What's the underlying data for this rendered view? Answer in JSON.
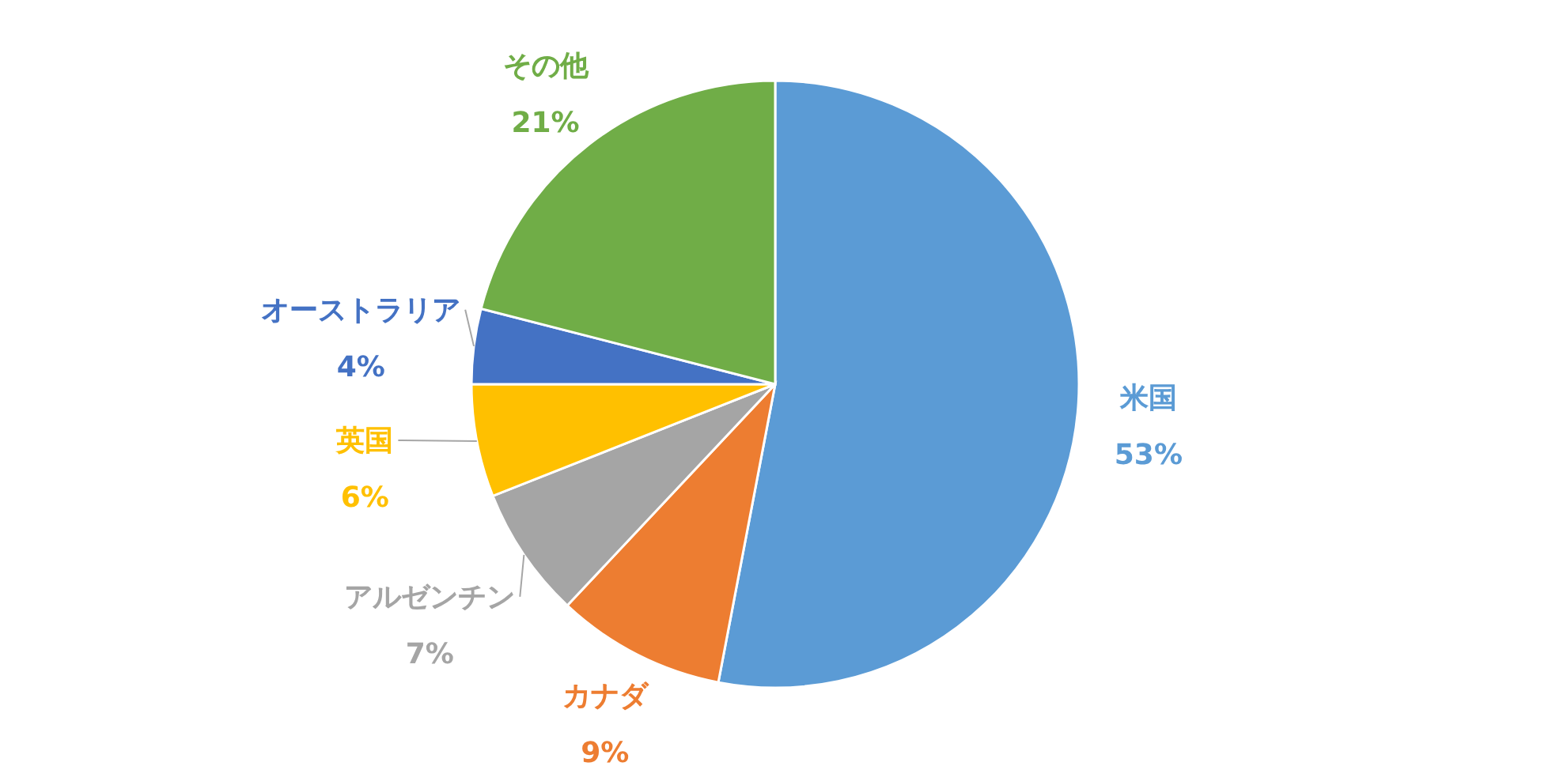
{
  "chart_data": {
    "type": "pie",
    "categories": [
      "米国",
      "カナダ",
      "アルゼンチン",
      "英国",
      "オーストラリア",
      "その他"
    ],
    "values": [
      53,
      9,
      7,
      6,
      4,
      21
    ],
    "colors": [
      "#5b9bd5",
      "#ed7d31",
      "#a5a5a5",
      "#ffc000",
      "#4472c4",
      "#70ad47"
    ],
    "value_labels": [
      "53%",
      "9%",
      "7%",
      "6%",
      "4%",
      "21%"
    ]
  }
}
